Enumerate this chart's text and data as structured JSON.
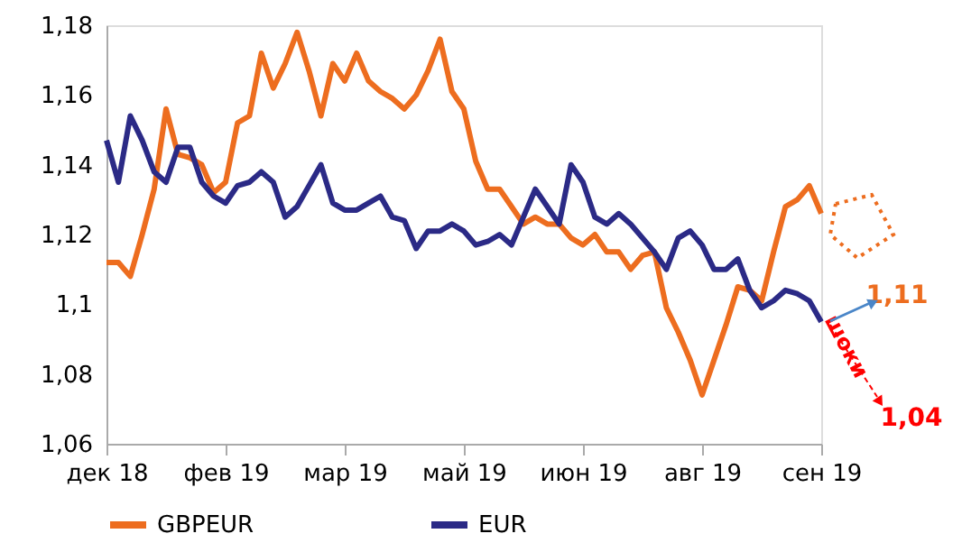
{
  "chart_data": {
    "type": "line",
    "categories": [
      "дек 18",
      null,
      null,
      null,
      null,
      null,
      null,
      null,
      null,
      null,
      "фев 19",
      null,
      null,
      null,
      null,
      null,
      null,
      null,
      null,
      null,
      "мар 19",
      null,
      null,
      null,
      null,
      null,
      null,
      null,
      null,
      null,
      "май 19",
      null,
      null,
      null,
      null,
      null,
      null,
      null,
      null,
      null,
      "июн 19",
      null,
      null,
      null,
      null,
      null,
      null,
      null,
      null,
      null,
      "авг 19",
      null,
      null,
      null,
      null,
      null,
      null,
      null,
      null,
      null,
      "сен 19"
    ],
    "series": [
      {
        "name": "GBPEUR",
        "color": "#ed6d1f",
        "values": [
          1.112,
          1.112,
          1.108,
          1.12,
          1.133,
          1.156,
          1.143,
          1.142,
          1.14,
          1.132,
          1.135,
          1.152,
          1.154,
          1.172,
          1.162,
          1.169,
          1.178,
          1.167,
          1.154,
          1.169,
          1.164,
          1.172,
          1.164,
          1.161,
          1.159,
          1.156,
          1.16,
          1.167,
          1.176,
          1.161,
          1.156,
          1.141,
          1.133,
          1.133,
          1.128,
          1.123,
          1.125,
          1.123,
          1.123,
          1.119,
          1.117,
          1.12,
          1.115,
          1.115,
          1.11,
          1.114,
          1.115,
          1.099,
          1.092,
          1.084,
          1.074,
          1.084,
          1.094,
          1.105,
          1.104,
          1.101,
          1.115,
          1.128,
          1.13,
          1.134,
          1.126
        ]
      },
      {
        "name": "EUR",
        "color": "#2b2a86",
        "values": [
          1.147,
          1.135,
          1.154,
          1.147,
          1.138,
          1.135,
          1.145,
          1.145,
          1.135,
          1.131,
          1.129,
          1.134,
          1.135,
          1.138,
          1.135,
          1.125,
          1.128,
          1.134,
          1.14,
          1.129,
          1.127,
          1.127,
          1.129,
          1.131,
          1.125,
          1.124,
          1.116,
          1.121,
          1.121,
          1.123,
          1.121,
          1.117,
          1.118,
          1.12,
          1.117,
          1.125,
          1.133,
          1.128,
          1.123,
          1.14,
          1.135,
          1.125,
          1.123,
          1.126,
          1.123,
          1.119,
          1.115,
          1.11,
          1.119,
          1.121,
          1.117,
          1.11,
          1.11,
          1.113,
          1.104,
          1.099,
          1.101,
          1.104,
          1.103,
          1.101,
          1.095
        ]
      }
    ],
    "ylim": [
      1.06,
      1.18
    ],
    "yticks": [
      {
        "value": 1.06,
        "label": "1,06"
      },
      {
        "value": 1.08,
        "label": "1,08"
      },
      {
        "value": 1.1,
        "label": "1,1"
      },
      {
        "value": 1.12,
        "label": "1,12"
      },
      {
        "value": 1.14,
        "label": "1,14"
      },
      {
        "value": 1.16,
        "label": "1,16"
      },
      {
        "value": 1.18,
        "label": "1,18"
      }
    ],
    "grid": false,
    "legend": "bottom",
    "line_style": "solid",
    "marker": "none",
    "annotations": [
      "1,11",
      "шоки",
      "1,04"
    ]
  }
}
